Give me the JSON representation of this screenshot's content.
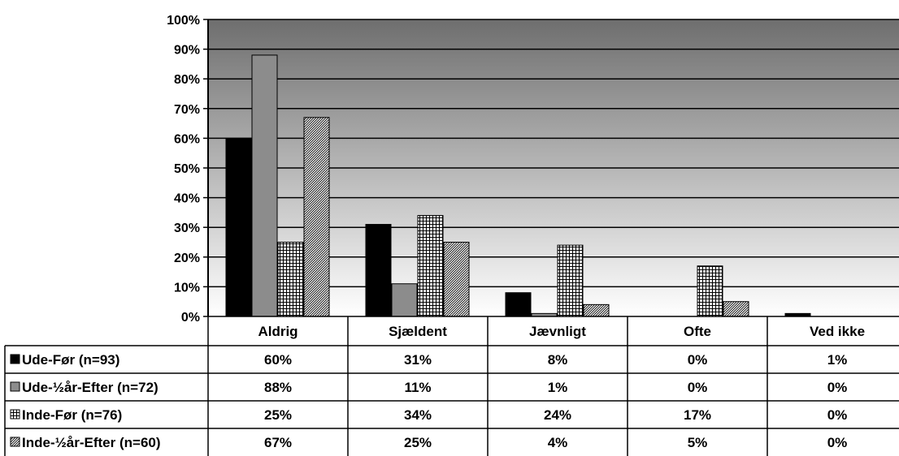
{
  "chart_data": {
    "type": "bar",
    "title": "",
    "xlabel": "",
    "ylabel": "",
    "ylim": [
      0,
      100
    ],
    "y_ticks": [
      "0%",
      "10%",
      "20%",
      "30%",
      "40%",
      "50%",
      "60%",
      "70%",
      "80%",
      "90%",
      "100%"
    ],
    "categories": [
      "Aldrig",
      "Sjældent",
      "Jævnligt",
      "Ofte",
      "Ved ikke"
    ],
    "series": [
      {
        "name": "Ude-Før (n=93)",
        "values": [
          60,
          31,
          8,
          0,
          1
        ],
        "labels": [
          "60%",
          "31%",
          "8%",
          "0%",
          "1%"
        ],
        "color": "#000000",
        "pattern": "solid"
      },
      {
        "name": "Ude-½år-Efter (n=72)",
        "values": [
          88,
          11,
          1,
          0,
          0
        ],
        "labels": [
          "88%",
          "11%",
          "1%",
          "0%",
          "0%"
        ],
        "color": "#8c8c8c",
        "pattern": "solid"
      },
      {
        "name": "Inde-Før (n=76)",
        "values": [
          25,
          34,
          24,
          17,
          0
        ],
        "labels": [
          "25%",
          "34%",
          "24%",
          "17%",
          "0%"
        ],
        "color": "#ffffff",
        "pattern": "grid"
      },
      {
        "name": "Inde-½år-Efter (n=60)",
        "values": [
          67,
          25,
          4,
          5,
          0
        ],
        "labels": [
          "67%",
          "25%",
          "4%",
          "5%",
          "0%"
        ],
        "color": "#ffffff",
        "pattern": "diagonal"
      }
    ],
    "background": {
      "top_color": "#6e6e6e",
      "bottom_color": "#ffffff",
      "gradient": "vertical"
    },
    "grid": true,
    "legend": "data-table-left",
    "data_table": true
  }
}
